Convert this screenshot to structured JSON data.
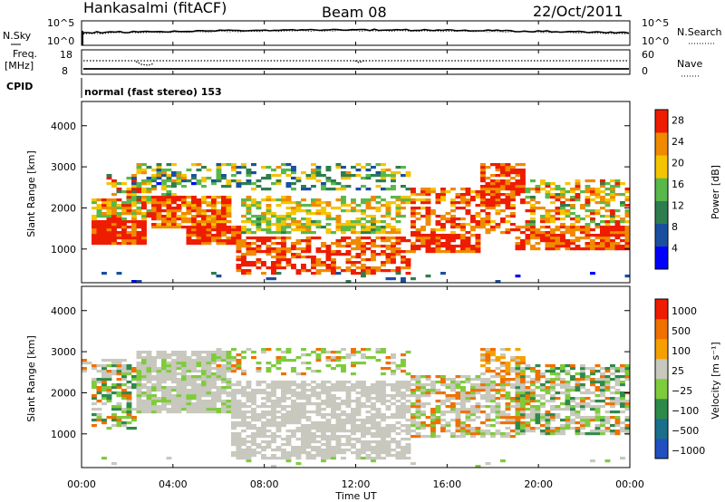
{
  "header": {
    "station": "Hankasalmi (fitACF)",
    "beam": "Beam 08",
    "date": "22/Oct/2011"
  },
  "noise_panel": {
    "left_label": "N.Sky",
    "right_label": "N.Search",
    "left_ticks": [
      "10^5",
      "10^0"
    ],
    "right_ticks": [
      "10^5",
      "10^0"
    ]
  },
  "freq_panel": {
    "left_label_1": "Freq.",
    "left_label_2": "[MHz]",
    "right_label": "Nave",
    "left_ticks": [
      "18",
      "8"
    ],
    "right_ticks": [
      "60",
      "0"
    ]
  },
  "cpid": {
    "label": "CPID",
    "value": "normal (fast stereo) 153"
  },
  "chart_data": [
    {
      "type": "heatmap",
      "quantity": "Power",
      "ylabel": "Slant Range [km]",
      "colorbar_label": "Power [dB]",
      "ylim": [
        180,
        4590
      ],
      "yticks": [
        "1000",
        "2000",
        "3000",
        "4000"
      ],
      "ytick_values": [
        1000,
        2000,
        3000,
        4000
      ],
      "colorbar_ticks": [
        "4",
        "8",
        "12",
        "16",
        "20",
        "24",
        "28"
      ],
      "colorbar_tick_values": [
        4,
        8,
        12,
        16,
        20,
        24,
        28
      ],
      "colorbar_range": [
        0,
        30
      ],
      "colors": [
        "#0000ff",
        "#1a4fa0",
        "#2e7d4f",
        "#58b84a",
        "#f5c400",
        "#f08a00",
        "#ee1c00"
      ],
      "grey_color": "#c8c8be",
      "bands": [
        {
          "x0": 0.5,
          "x1": 2.8,
          "y0": 1100,
          "y1": 1700,
          "dens": 0.95,
          "mode": "p",
          "min": 24,
          "max": 30
        },
        {
          "x0": 0.5,
          "x1": 3.5,
          "y0": 1700,
          "y1": 2200,
          "dens": 0.8,
          "mode": "p",
          "min": 14,
          "max": 30
        },
        {
          "x0": 1.2,
          "x1": 4.2,
          "y0": 2200,
          "y1": 2800,
          "dens": 0.45,
          "mode": "p",
          "min": 10,
          "max": 28
        },
        {
          "x0": 2.2,
          "x1": 6.5,
          "y0": 2500,
          "y1": 3100,
          "dens": 0.4,
          "mode": "p",
          "min": 4,
          "max": 26
        },
        {
          "x0": 3.0,
          "x1": 6.5,
          "y0": 1500,
          "y1": 2300,
          "dens": 0.85,
          "mode": "p",
          "min": 20,
          "max": 30
        },
        {
          "x0": 4.5,
          "x1": 7.0,
          "y0": 1100,
          "y1": 1600,
          "dens": 0.9,
          "mode": "p",
          "min": 24,
          "max": 30
        },
        {
          "x0": 6.8,
          "x1": 14.3,
          "y0": 380,
          "y1": 1300,
          "dens": 0.55,
          "mode": "p",
          "min": 22,
          "max": 30
        },
        {
          "x0": 7.0,
          "x1": 14.0,
          "y0": 1400,
          "y1": 1800,
          "dens": 0.7,
          "mode": "p",
          "min": 12,
          "max": 22
        },
        {
          "x0": 7.0,
          "x1": 14.5,
          "y0": 1800,
          "y1": 2300,
          "dens": 0.5,
          "mode": "p",
          "min": 14,
          "max": 24
        },
        {
          "x0": 6.0,
          "x1": 14.5,
          "y0": 2400,
          "y1": 3100,
          "dens": 0.4,
          "mode": "p",
          "min": 4,
          "max": 22
        },
        {
          "x0": 14.5,
          "x1": 17.5,
          "y0": 900,
          "y1": 1400,
          "dens": 0.85,
          "mode": "p",
          "min": 24,
          "max": 30
        },
        {
          "x0": 14.5,
          "x1": 19.0,
          "y0": 1400,
          "y1": 2500,
          "dens": 0.5,
          "mode": "p",
          "min": 20,
          "max": 30
        },
        {
          "x0": 17.5,
          "x1": 19.5,
          "y0": 2000,
          "y1": 3100,
          "dens": 0.65,
          "mode": "p",
          "min": 24,
          "max": 30
        },
        {
          "x0": 19.0,
          "x1": 24.0,
          "y0": 1000,
          "y1": 1600,
          "dens": 0.75,
          "mode": "p",
          "min": 22,
          "max": 30
        },
        {
          "x0": 19.5,
          "x1": 24.0,
          "y0": 1600,
          "y1": 2700,
          "dens": 0.5,
          "mode": "p",
          "min": 12,
          "max": 28
        },
        {
          "x0": 0.5,
          "x1": 24.0,
          "y0": 200,
          "y1": 450,
          "dens": 0.06,
          "mode": "p",
          "min": 4,
          "max": 12
        }
      ]
    },
    {
      "type": "heatmap",
      "quantity": "Velocity",
      "ylabel": "Slant Range [km]",
      "colorbar_label": "Velocity [m s⁻¹]",
      "ylim": [
        180,
        4590
      ],
      "yticks": [
        "1000",
        "2000",
        "3000",
        "4000"
      ],
      "ytick_values": [
        1000,
        2000,
        3000,
        4000
      ],
      "colorbar_ticks": [
        "1000",
        "500",
        "100",
        "25",
        "−25",
        "−100",
        "−500",
        "−1000"
      ],
      "colors": [
        "#2050c0",
        "#1a6f8a",
        "#2e8a4a",
        "#7ecb3c",
        "#c8c8be",
        "#f5a000",
        "#f07000",
        "#ee1c00"
      ],
      "grey_color": "#c8c8be",
      "bands": [
        {
          "x0": 0.5,
          "x1": 2.5,
          "y0": 1100,
          "y1": 2700,
          "dens": 0.6,
          "mode": "v",
          "pal": [
            3,
            4,
            6,
            2
          ]
        },
        {
          "x0": 0.0,
          "x1": 2.0,
          "y0": 2300,
          "y1": 2800,
          "dens": 0.35,
          "mode": "v",
          "pal": [
            4,
            4,
            6
          ]
        },
        {
          "x0": 2.5,
          "x1": 6.5,
          "y0": 1500,
          "y1": 3000,
          "dens": 0.85,
          "mode": "v",
          "pal": [
            4,
            4,
            4,
            3
          ]
        },
        {
          "x0": 6.5,
          "x1": 14.5,
          "y0": 400,
          "y1": 2300,
          "dens": 0.7,
          "mode": "v",
          "pal": [
            4
          ]
        },
        {
          "x0": 6.0,
          "x1": 14.5,
          "y0": 2400,
          "y1": 3100,
          "dens": 0.35,
          "mode": "v",
          "pal": [
            3,
            3,
            4,
            6
          ]
        },
        {
          "x0": 14.5,
          "x1": 19.5,
          "y0": 900,
          "y1": 2400,
          "dens": 0.6,
          "mode": "v",
          "pal": [
            4,
            4,
            6,
            3
          ]
        },
        {
          "x0": 17.5,
          "x1": 19.5,
          "y0": 2000,
          "y1": 3100,
          "dens": 0.55,
          "mode": "v",
          "pal": [
            6,
            5,
            4
          ]
        },
        {
          "x0": 19.0,
          "x1": 24.0,
          "y0": 1000,
          "y1": 2700,
          "dens": 0.65,
          "mode": "v",
          "pal": [
            4,
            4,
            3,
            2,
            6
          ]
        },
        {
          "x0": 0.5,
          "x1": 24.0,
          "y0": 200,
          "y1": 450,
          "dens": 0.05,
          "mode": "v",
          "pal": [
            4,
            3
          ]
        }
      ]
    }
  ],
  "x_axis": {
    "label": "Time UT",
    "ticks": [
      "00:00",
      "04:00",
      "08:00",
      "12:00",
      "16:00",
      "20:00",
      "00:00"
    ],
    "tick_values": [
      0,
      4,
      8,
      12,
      16,
      20,
      24
    ],
    "xlim": [
      0,
      24
    ]
  }
}
